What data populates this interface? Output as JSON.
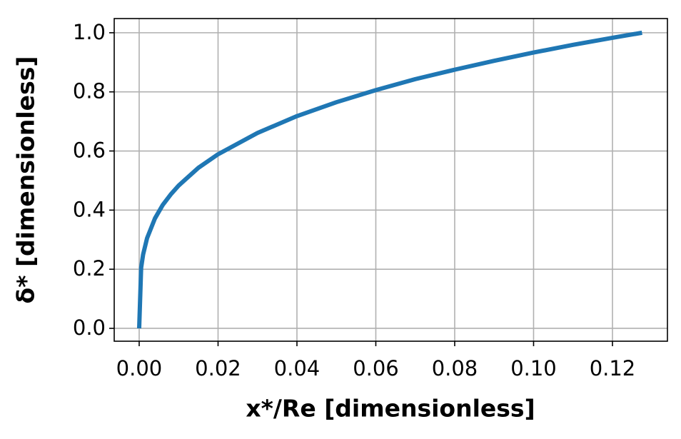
{
  "chart_data": {
    "type": "line",
    "xlabel": "x*/Re [dimensionless]",
    "ylabel": "δ* [dimensionless]",
    "x": [
      0,
      0.0005,
      0.001,
      0.002,
      0.004,
      0.006,
      0.008,
      0.01,
      0.015,
      0.02,
      0.03,
      0.04,
      0.05,
      0.06,
      0.07,
      0.08,
      0.09,
      0.1,
      0.11,
      0.12,
      0.1275
    ],
    "series": [
      {
        "color": "#1f77b4",
        "values": [
          0,
          0.205,
          0.25,
          0.305,
          0.372,
          0.418,
          0.453,
          0.483,
          0.543,
          0.589,
          0.661,
          0.718,
          0.765,
          0.806,
          0.843,
          0.875,
          0.905,
          0.933,
          0.959,
          0.983,
          1.0
        ]
      }
    ],
    "xlim": [
      -0.00633,
      0.13394
    ],
    "ylim": [
      -0.0435,
      1.048
    ],
    "xticks": [
      {
        "value": 0,
        "label": "0.00"
      },
      {
        "value": 0.02,
        "label": "0.02"
      },
      {
        "value": 0.04,
        "label": "0.04"
      },
      {
        "value": 0.06,
        "label": "0.06"
      },
      {
        "value": 0.08,
        "label": "0.08"
      },
      {
        "value": 0.1,
        "label": "0.10"
      },
      {
        "value": 0.12,
        "label": "0.12"
      }
    ],
    "yticks": [
      {
        "value": 0,
        "label": "0.0"
      },
      {
        "value": 0.2,
        "label": "0.2"
      },
      {
        "value": 0.4,
        "label": "0.4"
      },
      {
        "value": 0.6,
        "label": "0.6"
      },
      {
        "value": 0.8,
        "label": "0.8"
      },
      {
        "value": 1,
        "label": "1.0"
      }
    ],
    "grid": true
  }
}
